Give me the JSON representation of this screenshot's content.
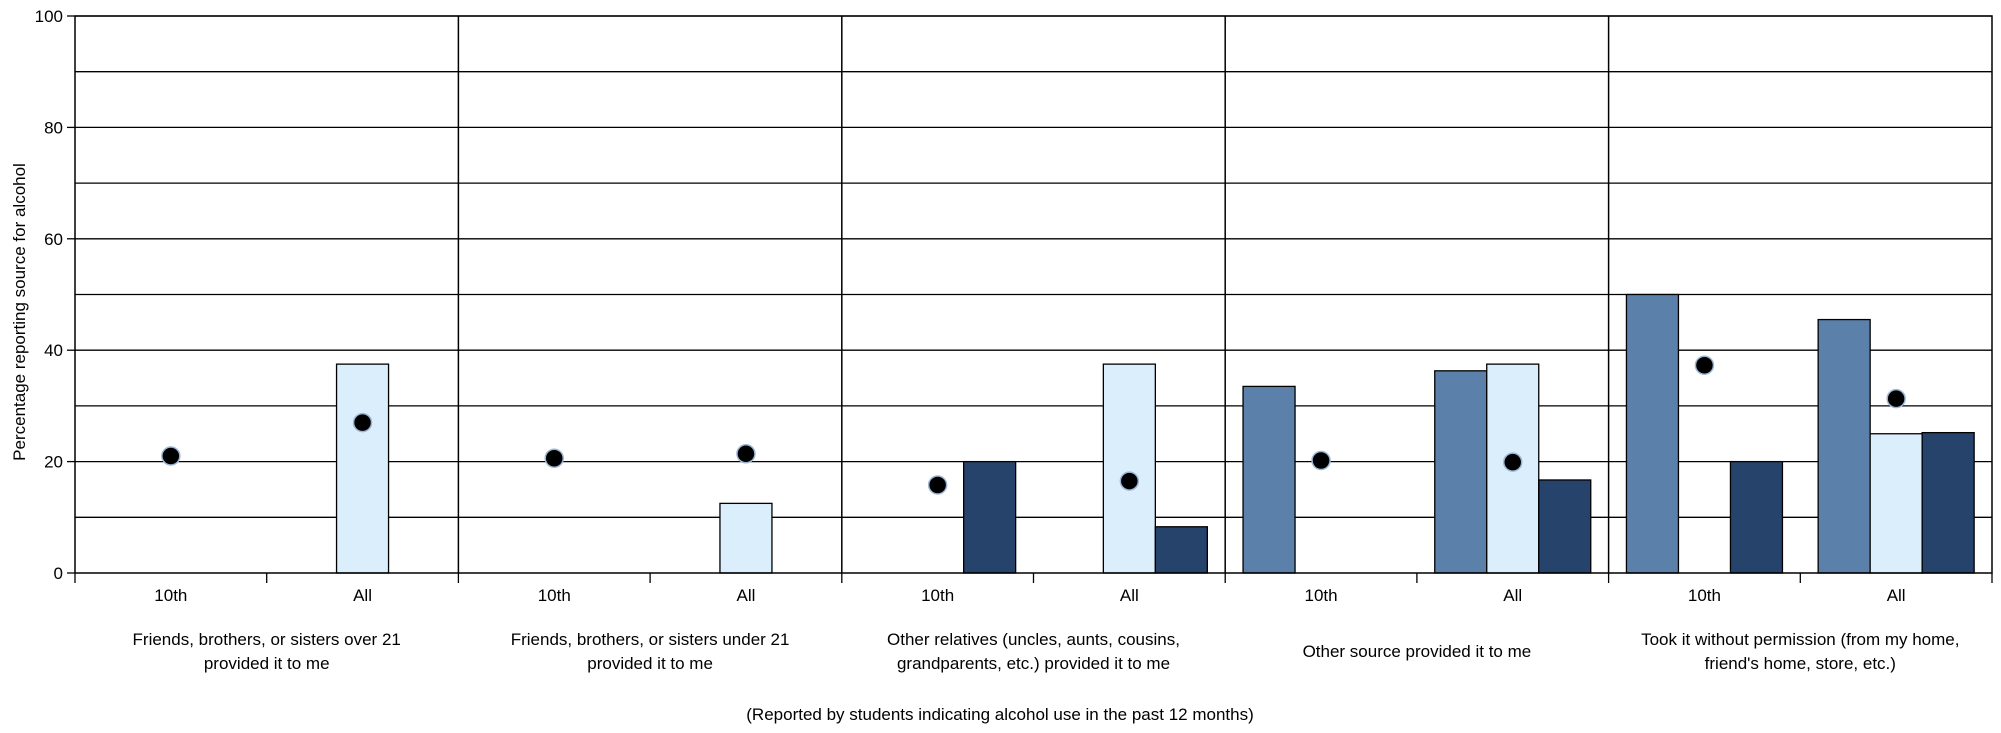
{
  "chart_data": {
    "type": "bar",
    "ylabel": "Percentage reporting source for alcohol",
    "xlabel": "(Reported by students indicating alcohol use in the past 12 months)",
    "ylim": [
      0,
      100
    ],
    "yticks": [
      0,
      20,
      40,
      60,
      80,
      100
    ],
    "grid": true,
    "subgroups": [
      "10th",
      "All"
    ],
    "categories": [
      {
        "lines": [
          "Friends, brothers, or sisters over 21",
          "provided it to me"
        ]
      },
      {
        "lines": [
          "Friends, brothers, or sisters under 21",
          "provided it to me"
        ]
      },
      {
        "lines": [
          "Other relatives (uncles, aunts, cousins,",
          "grandparents, etc.) provided it to me"
        ]
      },
      {
        "lines": [
          "Other source provided it to me"
        ]
      },
      {
        "lines": [
          "Took it without permission (from my home,",
          "friend's home, store, etc.)"
        ]
      }
    ],
    "series": [
      {
        "color": "#5b81aa",
        "values": [
          [
            0,
            0
          ],
          [
            0,
            0
          ],
          [
            0,
            0
          ],
          [
            33.5,
            36.3
          ],
          [
            50,
            45.5
          ]
        ]
      },
      {
        "color": "#dbeefc",
        "values": [
          [
            0,
            37.5
          ],
          [
            0,
            12.5
          ],
          [
            0,
            37.5
          ],
          [
            0,
            37.5
          ],
          [
            0,
            25
          ]
        ]
      },
      {
        "color": "#25436b",
        "values": [
          [
            0,
            0
          ],
          [
            0,
            0
          ],
          [
            20,
            8.3
          ],
          [
            0,
            16.7
          ],
          [
            20,
            25.2
          ]
        ]
      }
    ],
    "dots": {
      "color": "#000000",
      "values": [
        [
          21,
          27
        ],
        [
          20.6,
          21.4
        ],
        [
          15.8,
          16.5
        ],
        [
          20.2,
          19.9
        ],
        [
          37.3,
          31.3
        ]
      ]
    }
  }
}
